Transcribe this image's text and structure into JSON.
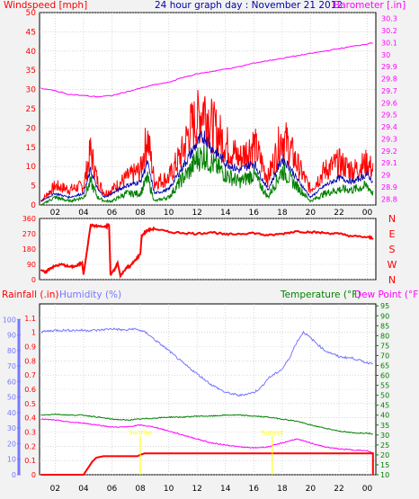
{
  "header": {
    "left_title": "Windspeed [mph]",
    "center_title": "24 hour graph day : November 21 2012",
    "right_title": "Barometer [.in]"
  },
  "bottom_header": {
    "rain_title": "Rainfall (.in)",
    "humidity_title": "Humidity (%)",
    "temp_title": "Temperature (°F)",
    "dew_title": "Dew Point (°F)"
  },
  "colors": {
    "wind": "#ff0000",
    "wind_avg": "#0000aa",
    "wind_gust": "#008000",
    "barometer": "#ff00ff",
    "direction": "#ff0000",
    "rain": "#ff0000",
    "rain_scale": "#7777ff",
    "humidity": "#7777ff",
    "temperature": "#008000",
    "dew_point": "#ff00ff",
    "panel_bg": "#ffffff",
    "grid": "#c0c0c0",
    "marker": "#ffff00",
    "axis_text": "#000000"
  },
  "chart_data": [
    {
      "type": "line",
      "title": "24 hour graph day : November 21 2012",
      "x_ticks": [
        "02",
        "04",
        "06",
        "08",
        "10",
        "12",
        "14",
        "16",
        "18",
        "20",
        "22",
        "00"
      ],
      "x_hours": [
        1,
        3,
        5,
        7,
        9,
        11,
        13,
        15,
        17,
        19,
        21,
        23
      ],
      "y_left_label": "Windspeed [mph]",
      "y_left_ticks": [
        0,
        5,
        10,
        15,
        20,
        25,
        30,
        35,
        40,
        45,
        50
      ],
      "y_left_range": [
        0,
        50
      ],
      "y_right_label": "Barometer [.in]",
      "y_right_ticks": [
        28.8,
        28.9,
        29.0,
        29.1,
        29.2,
        29.3,
        29.4,
        29.5,
        29.6,
        29.7,
        29.8,
        29.9,
        30.0,
        30.1,
        30.2,
        30.3
      ],
      "y_right_ticks_text": [
        "28.8",
        "28.9",
        "29",
        "29.1",
        "29.2",
        "29.3",
        "29.4",
        "29.5",
        "29.6",
        "29.7",
        "29.8",
        "29.9",
        "30",
        "30.1",
        "30.2",
        "30.3"
      ],
      "y_right_range": [
        28.75,
        30.35
      ],
      "series": [
        {
          "key": "gust",
          "x": [
            0,
            1,
            2,
            3,
            3.5,
            4,
            4.5,
            5,
            6,
            7,
            7.5,
            8,
            9,
            10,
            10.5,
            11,
            11.5,
            12,
            13,
            14,
            15,
            16,
            17,
            17.5,
            18,
            19,
            20,
            21,
            22,
            23,
            23.4
          ],
          "y": [
            1,
            5,
            4,
            5,
            14,
            6,
            3,
            4,
            7,
            9,
            18,
            6,
            7,
            14,
            20,
            22,
            26,
            21,
            16,
            12,
            16,
            7,
            18,
            15,
            11,
            4,
            9,
            11,
            9,
            11,
            9
          ]
        },
        {
          "key": "average",
          "x": [
            0,
            1,
            2,
            3,
            3.5,
            4,
            4.5,
            5,
            6,
            7,
            7.5,
            8,
            9,
            10,
            10.5,
            11,
            11.5,
            12,
            13,
            14,
            15,
            16,
            17,
            17.5,
            18,
            19,
            20,
            21,
            22,
            23,
            23.4
          ],
          "y": [
            1,
            3,
            2,
            3,
            9,
            4,
            2,
            3,
            5,
            6,
            11,
            3,
            4,
            10,
            13,
            16,
            18,
            15,
            11,
            9,
            11,
            4,
            12,
            10,
            7,
            2,
            5,
            7,
            6,
            8,
            6
          ]
        },
        {
          "key": "low",
          "x": [
            0,
            1,
            2,
            3,
            3.5,
            4,
            4.5,
            5,
            6,
            7,
            7.5,
            8,
            9,
            10,
            10.5,
            11,
            11.5,
            12,
            13,
            14,
            15,
            16,
            17,
            17.5,
            18,
            19,
            20,
            21,
            22,
            23,
            23.4
          ],
          "y": [
            0,
            2,
            1,
            2,
            6,
            2,
            1,
            1,
            3,
            3,
            7,
            1,
            2,
            7,
            9,
            12,
            13,
            11,
            8,
            6,
            8,
            2,
            9,
            7,
            5,
            1,
            3,
            4,
            4,
            5,
            3
          ]
        },
        {
          "key": "barometer",
          "x": [
            0,
            1,
            2,
            3,
            4,
            5,
            6,
            7,
            8,
            9,
            10,
            11,
            12,
            13,
            14,
            15,
            16,
            17,
            18,
            19,
            20,
            21,
            22,
            23,
            23.4
          ],
          "y": [
            29.72,
            29.7,
            29.67,
            29.66,
            29.65,
            29.66,
            29.69,
            29.72,
            29.75,
            29.77,
            29.81,
            29.84,
            29.86,
            29.88,
            29.9,
            29.93,
            29.95,
            29.97,
            29.99,
            30.01,
            30.03,
            30.05,
            30.07,
            30.09,
            30.1
          ]
        }
      ]
    },
    {
      "type": "scatter",
      "title": "",
      "y_left_ticks": [
        0,
        90,
        180,
        270,
        360
      ],
      "y_left_range": [
        0,
        360
      ],
      "y_right_ticks": [
        "N",
        "W",
        "S",
        "E",
        "N"
      ],
      "series": [
        {
          "key": "direction",
          "x": [
            0,
            0.3,
            0.6,
            1,
            1.5,
            2,
            2.5,
            2.9,
            3.0,
            3.5,
            4,
            4.5,
            4.8,
            4.9,
            5.2,
            5.4,
            5.6,
            6,
            6.3,
            6.6,
            7,
            7.1,
            7.5,
            8,
            9,
            10,
            11,
            12,
            13,
            14,
            15,
            16,
            17,
            18,
            19,
            20,
            21,
            22,
            23,
            23.4
          ],
          "y": [
            60,
            40,
            65,
            80,
            90,
            75,
            80,
            100,
            30,
            320,
            315,
            310,
            320,
            30,
            60,
            100,
            20,
            70,
            80,
            110,
            150,
            260,
            290,
            300,
            280,
            275,
            270,
            280,
            265,
            270,
            275,
            260,
            270,
            285,
            280,
            275,
            270,
            255,
            250,
            245
          ]
        }
      ]
    },
    {
      "type": "line",
      "title": "",
      "y_left_label": "Rainfall (.in)",
      "y_left_ticks": [
        0,
        0.1,
        0.2,
        0.3,
        0.4,
        0.5,
        0.6,
        0.7,
        0.8,
        0.9,
        1.0,
        1.1
      ],
      "y_left_ticks_text": [
        "0",
        "0.1",
        "0.2",
        "0.3",
        "0.4",
        "0.5",
        "0.6",
        "0.7",
        "0.8",
        "0.9",
        "1",
        "1.1"
      ],
      "y_left_range": [
        0,
        1.2
      ],
      "y_left2_label": "Humidity (%)",
      "y_left2_ticks": [
        0,
        10,
        20,
        30,
        40,
        50,
        60,
        70,
        80,
        90,
        100
      ],
      "y_left2_range": [
        0,
        110
      ],
      "y_right_label": "Temperature (°F)",
      "y_right_ticks": [
        10,
        15,
        20,
        25,
        30,
        35,
        40,
        45,
        50,
        55,
        60,
        65,
        70,
        75,
        80,
        85,
        90,
        95
      ],
      "y_right_range": [
        10,
        96
      ],
      "series": [
        {
          "key": "humidity",
          "x": [
            0,
            1,
            2,
            3,
            4,
            5,
            6,
            6.5,
            7,
            7.5,
            8,
            9,
            10,
            11,
            12,
            13,
            14,
            15,
            15.5,
            16,
            17,
            17.5,
            18,
            18.5,
            19,
            20,
            21,
            22,
            23,
            23.4
          ],
          "y": [
            92,
            93,
            93,
            93,
            93,
            94,
            93,
            94,
            93,
            91,
            87,
            80,
            72,
            65,
            58,
            53,
            51,
            53,
            56,
            62,
            68,
            75,
            85,
            92,
            88,
            80,
            76,
            75,
            72,
            72
          ]
        },
        {
          "key": "temperature",
          "x": [
            0,
            1,
            2,
            3,
            4,
            5,
            6,
            7,
            8,
            9,
            10,
            11,
            12,
            13,
            14,
            15,
            16,
            17,
            18,
            19,
            20,
            21,
            22,
            23,
            23.4
          ],
          "y": [
            40,
            40.5,
            40,
            40,
            39,
            38,
            37.5,
            38,
            38.5,
            39,
            39,
            39.5,
            39.5,
            40,
            40,
            39.5,
            39,
            38,
            37,
            35,
            33.5,
            32,
            31,
            31,
            30.5
          ]
        },
        {
          "key": "dew_point",
          "x": [
            0,
            1,
            2,
            3,
            4,
            5,
            6,
            7,
            8,
            9,
            10,
            11,
            12,
            13,
            14,
            15,
            16,
            17,
            18,
            19,
            20,
            21,
            22,
            23,
            23.4
          ],
          "y": [
            38,
            37.5,
            36.5,
            36,
            35,
            34,
            34,
            35,
            34,
            32,
            30,
            28,
            26,
            25,
            24,
            23.5,
            24,
            26,
            28,
            26,
            24,
            23,
            22.5,
            22,
            21
          ]
        },
        {
          "key": "rainfall",
          "x": [
            0,
            3.0,
            3.6,
            3.9,
            4.4,
            6.8,
            7.0,
            7.3,
            9,
            12,
            15,
            18,
            21,
            23.4,
            23.4
          ],
          "y": [
            0,
            0,
            0.09,
            0.12,
            0.13,
            0.13,
            0.14,
            0.15,
            0.15,
            0.15,
            0.15,
            0.15,
            0.15,
            0.15,
            0
          ]
        }
      ],
      "markers": [
        {
          "label": "Sunrise",
          "hour": 7.0
        },
        {
          "label": "Sunset",
          "hour": 16.3
        }
      ]
    }
  ]
}
